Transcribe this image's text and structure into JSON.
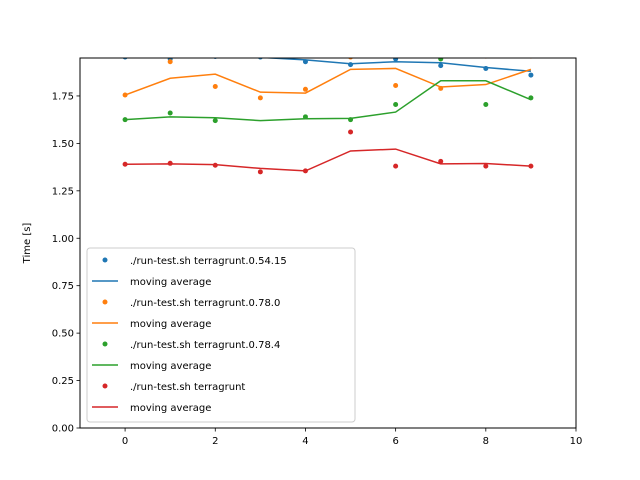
{
  "chart_data": {
    "type": "scatter",
    "title": "",
    "xlabel": "",
    "ylabel": "Time [s]",
    "xlim": [
      -1,
      10
    ],
    "ylim": [
      0.0,
      1.95
    ],
    "x_ticks": [
      0,
      2,
      4,
      6,
      8,
      10
    ],
    "x_tick_labels": [
      "0",
      "2",
      "4",
      "6",
      "8",
      "10"
    ],
    "y_ticks": [
      0.0,
      0.25,
      0.5,
      0.75,
      1.0,
      1.25,
      1.5,
      1.75
    ],
    "y_tick_labels": [
      "0.00",
      "0.25",
      "0.50",
      "0.75",
      "1.00",
      "1.25",
      "1.50",
      "1.75"
    ],
    "grid": false,
    "legend_position": "lower-left",
    "x": [
      0,
      1,
      2,
      3,
      4,
      5,
      6,
      7,
      8,
      9
    ],
    "series": [
      {
        "name": "./run-test.sh terragrunt.0.54.15",
        "avg_name": "moving average",
        "color": "#1f77b4",
        "points": [
          1.955,
          1.945,
          1.958,
          1.955,
          1.93,
          1.915,
          1.945,
          1.91,
          1.895,
          1.86
        ],
        "moving_average": [
          1.952,
          1.955,
          1.956,
          1.953,
          1.94,
          1.92,
          1.93,
          1.925,
          1.9,
          1.88
        ]
      },
      {
        "name": "./run-test.sh terragrunt.0.78.0",
        "avg_name": "moving average",
        "color": "#ff7f0e",
        "points": [
          1.755,
          1.93,
          1.8,
          1.74,
          1.785,
          1.955,
          1.805,
          1.79,
          1.96,
          1.96
        ],
        "moving_average": [
          1.755,
          1.843,
          1.865,
          1.77,
          1.765,
          1.89,
          1.895,
          1.797,
          1.81,
          1.89
        ]
      },
      {
        "name": "./run-test.sh terragrunt.0.78.4",
        "avg_name": "moving average",
        "color": "#2ca02c",
        "points": [
          1.625,
          1.66,
          1.62,
          1.965,
          1.64,
          1.625,
          1.705,
          1.945,
          1.705,
          1.74
        ],
        "moving_average": [
          1.625,
          1.64,
          1.635,
          1.62,
          1.63,
          1.632,
          1.665,
          1.83,
          1.83,
          1.73
        ]
      },
      {
        "name": "./run-test.sh terragrunt",
        "avg_name": "moving average",
        "color": "#d62728",
        "points": [
          1.39,
          1.395,
          1.385,
          1.35,
          1.355,
          1.56,
          1.38,
          1.405,
          1.38,
          1.38
        ],
        "moving_average": [
          1.39,
          1.392,
          1.388,
          1.368,
          1.355,
          1.46,
          1.47,
          1.392,
          1.394,
          1.38
        ]
      }
    ]
  }
}
